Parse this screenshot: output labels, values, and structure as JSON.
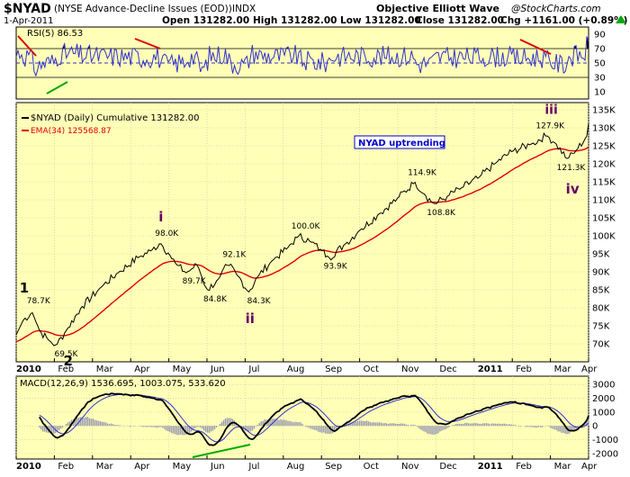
{
  "header": {
    "symbol": "$NYAD",
    "name": "(NYSE Advance-Decline Issues (EOD))",
    "exchange": "INDX",
    "credit": "Objective Elliott Wave",
    "watermark": "@StockCharts.com",
    "date": "1-Apr-2011",
    "open": "Open 131282.00",
    "high": "High 131282.00",
    "low": "Low 131282.00",
    "close": "Close 131282.00",
    "change": "Chg +1161.00 (+0.89%)",
    "change_icon": "up-triangle-icon"
  },
  "colors": {
    "panel_bg": "#ffffb8",
    "price_line": "#000000",
    "ema_line": "#e00000",
    "rsi_line": "#3333cc",
    "macd_signal": "#3333cc",
    "histogram": "#9a9ab2",
    "up_arrow": "#00aa00",
    "trend_red": "#dd0000",
    "trend_green": "#00aa00",
    "wave_label": "#660066",
    "box_text": "#0000cc"
  },
  "chart_data": [
    {
      "type": "line",
      "panel": "rsi",
      "legend": "RSI(5) 86.53",
      "ylim": [
        0,
        100
      ],
      "yticks": [
        10,
        30,
        50,
        70,
        90
      ],
      "overbought": 70,
      "oversold": 30,
      "midline": 50
    },
    {
      "type": "line",
      "panel": "price",
      "legend_price": "$NYAD (Daily) Cumulative 131282.00",
      "legend_ema": "EMA(34) 125568.87",
      "box_label": "NYAD uptrending",
      "ylim": [
        65000,
        137000
      ],
      "yticks": [
        "70K",
        "75K",
        "80K",
        "85K",
        "90K",
        "95K",
        "100K",
        "105K",
        "110K",
        "115K",
        "120K",
        "125K",
        "130K",
        "135K"
      ],
      "ytick_values": [
        70000,
        75000,
        80000,
        85000,
        90000,
        95000,
        100000,
        105000,
        110000,
        115000,
        120000,
        125000,
        130000,
        135000
      ],
      "x_months": [
        "2010",
        "Feb",
        "Mar",
        "Apr",
        "May",
        "Jun",
        "Jul",
        "Aug",
        "Sep",
        "Oct",
        "Nov",
        "Dec",
        "2011",
        "Feb",
        "Mar",
        "Apr"
      ],
      "x_month_pos": [
        0,
        1,
        2,
        3,
        4,
        5,
        6,
        7,
        8,
        9,
        10,
        11,
        12,
        13,
        14,
        15
      ],
      "anchors": [
        [
          0,
          72500
        ],
        [
          0.18,
          76500
        ],
        [
          0.42,
          78700
        ],
        [
          0.62,
          73500
        ],
        [
          0.85,
          71000
        ],
        [
          1.05,
          69500
        ],
        [
          1.3,
          73500
        ],
        [
          1.7,
          80000
        ],
        [
          2.2,
          85500
        ],
        [
          2.7,
          90000
        ],
        [
          3.2,
          94000
        ],
        [
          3.55,
          96000
        ],
        [
          3.78,
          98000
        ],
        [
          4.0,
          95000
        ],
        [
          4.2,
          92000
        ],
        [
          4.45,
          89700
        ],
        [
          4.75,
          92000
        ],
        [
          5.0,
          84800
        ],
        [
          5.3,
          88000
        ],
        [
          5.55,
          92100
        ],
        [
          5.8,
          89000
        ],
        [
          6.1,
          84300
        ],
        [
          6.35,
          89000
        ],
        [
          6.7,
          93000
        ],
        [
          7.1,
          96500
        ],
        [
          7.4,
          100000
        ],
        [
          7.7,
          98500
        ],
        [
          8.0,
          96000
        ],
        [
          8.2,
          93900
        ],
        [
          8.6,
          97500
        ],
        [
          9.0,
          101500
        ],
        [
          9.5,
          106000
        ],
        [
          10.0,
          110500
        ],
        [
          10.45,
          114900
        ],
        [
          10.7,
          111500
        ],
        [
          10.95,
          108800
        ],
        [
          11.3,
          111000
        ],
        [
          11.7,
          113500
        ],
        [
          12.1,
          116000
        ],
        [
          12.6,
          120500
        ],
        [
          13.0,
          123500
        ],
        [
          13.5,
          125500
        ],
        [
          13.9,
          127900
        ],
        [
          14.15,
          125500
        ],
        [
          14.45,
          121300
        ],
        [
          14.7,
          124000
        ],
        [
          14.95,
          127500
        ],
        [
          15.0,
          131282
        ]
      ],
      "annotations": [
        {
          "x": 0.42,
          "y": 78700,
          "text": "78.7K"
        },
        {
          "x": 1.05,
          "y": 69500,
          "text": "69.5K"
        },
        {
          "x": 3.78,
          "y": 98000,
          "text": "98.0K"
        },
        {
          "x": 4.45,
          "y": 89700,
          "text": "89.7K"
        },
        {
          "x": 5.0,
          "y": 84800,
          "text": "84.8K"
        },
        {
          "x": 5.55,
          "y": 92100,
          "text": "92.1K"
        },
        {
          "x": 6.1,
          "y": 84300,
          "text": "84.3K"
        },
        {
          "x": 7.4,
          "y": 100000,
          "text": "100.0K"
        },
        {
          "x": 8.2,
          "y": 93900,
          "text": "93.9K"
        },
        {
          "x": 10.45,
          "y": 114900,
          "text": "114.9K"
        },
        {
          "x": 10.95,
          "y": 108800,
          "text": "108.8K"
        },
        {
          "x": 13.9,
          "y": 127900,
          "text": "127.9K"
        },
        {
          "x": 14.45,
          "y": 121300,
          "text": "121.3K"
        }
      ],
      "waves": [
        {
          "x": 0.42,
          "y": 78700,
          "text": "1"
        },
        {
          "x": 1.05,
          "y": 69500,
          "text": "2"
        },
        {
          "x": 3.78,
          "y": 98000,
          "text": "i"
        },
        {
          "x": 6.1,
          "y": 84300,
          "text": "ii"
        },
        {
          "x": 13.9,
          "y": 127900,
          "text": "iii"
        },
        {
          "x": 14.45,
          "y": 121300,
          "text": "iv"
        }
      ]
    },
    {
      "type": "line",
      "panel": "macd",
      "legend": "MACD(12,26,9) 1536.695, 1003.075, 533.620",
      "ylim": [
        -2400,
        3600
      ],
      "yticks": [
        "3000",
        "2000",
        "1000",
        "0",
        "-1000",
        "-2000"
      ],
      "ytick_values": [
        3000,
        2000,
        1000,
        0,
        -1000,
        -2000
      ],
      "x_months": [
        "2010",
        "Feb",
        "Mar",
        "Apr",
        "May",
        "Jun",
        "Jul",
        "Aug",
        "Sep",
        "Oct",
        "Nov",
        "Dec",
        "2011",
        "Feb",
        "Mar",
        "Apr"
      ]
    }
  ]
}
